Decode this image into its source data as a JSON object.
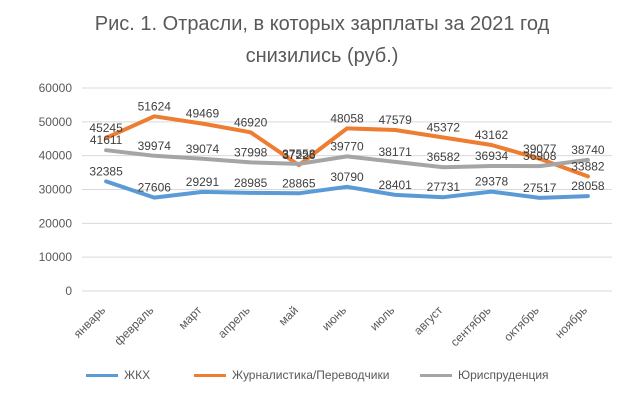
{
  "chart_data": {
    "type": "line",
    "title_line1": "Рис. 1. Отрасли, в которых зарплаты за 2021 год",
    "title_line2": "снизились (руб.)",
    "categories": [
      "январь",
      "февраль",
      "март",
      "апрель",
      "май",
      "июнь",
      "июль",
      "август",
      "сентябрь",
      "октябрь",
      "ноябрь"
    ],
    "ylim": [
      0,
      60000
    ],
    "yticks": [
      0,
      10000,
      20000,
      30000,
      40000,
      50000,
      60000
    ],
    "grid": true,
    "legend_position": "bottom",
    "series": [
      {
        "name": "ЖКХ",
        "color": "#5b9bd5",
        "values": [
          32385,
          27606,
          29291,
          28985,
          28865,
          30790,
          28401,
          27731,
          29378,
          27517,
          28058
        ]
      },
      {
        "name": "Журналистика/Переводчики",
        "color": "#ed7d31",
        "values": [
          45245,
          51624,
          49469,
          46920,
          37226,
          48058,
          47579,
          45372,
          43162,
          39077,
          33882
        ]
      },
      {
        "name": "Юриспруденция",
        "color": "#a5a5a5",
        "values": [
          41611,
          39974,
          39074,
          37998,
          37558,
          39770,
          38171,
          36582,
          36934,
          36908,
          38740
        ]
      }
    ]
  }
}
